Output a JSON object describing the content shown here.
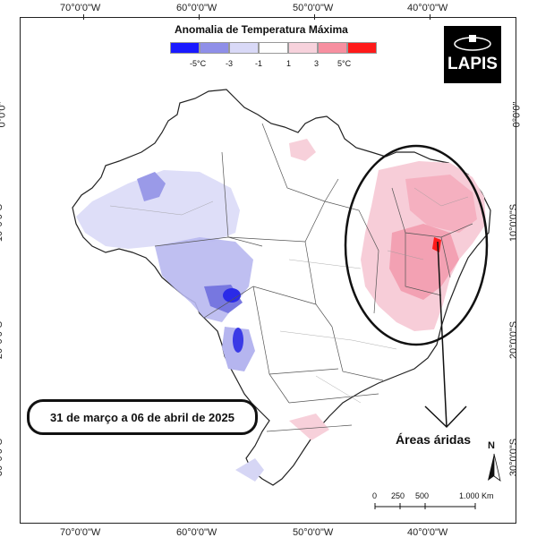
{
  "map": {
    "legend_title": "Anomalia de Temperatura Máxima",
    "legend_colors": [
      "#1a1aff",
      "#8f8fe8",
      "#d9d9f7",
      "#ffffff",
      "#f7d2dc",
      "#f78fa0",
      "#ff1a1a"
    ],
    "legend_labels": [
      "-5°C",
      "-3",
      "-1",
      "1",
      "3",
      "5°C"
    ],
    "longitude_labels": [
      "70°0'0\"W",
      "60°0'0\"W",
      "50°0'0\"W",
      "40°0'0\"W"
    ],
    "latitude_labels": [
      "0°0'0\"",
      "10°0'0\"S",
      "20°0'0\"S",
      "30°0'0\"S"
    ],
    "logo_text": "LAPIS",
    "period": "31 de março a 06 de abril de 2025",
    "annotation": "Áreas áridas",
    "north_label": "N",
    "scale_labels": [
      "0",
      "250",
      "500",
      "1.000 Km"
    ]
  }
}
